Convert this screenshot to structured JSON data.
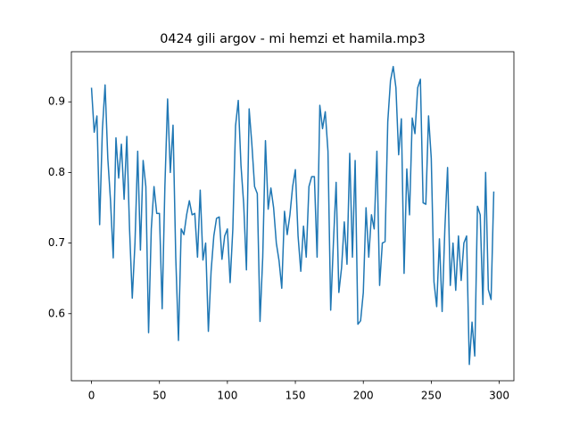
{
  "chart_data": {
    "type": "line",
    "title": "0424 gili argov - mi hemzi et hamila.mp3",
    "x": [
      0,
      2,
      4,
      6,
      8,
      10,
      12,
      14,
      16,
      18,
      20,
      22,
      24,
      26,
      28,
      30,
      32,
      34,
      36,
      38,
      40,
      42,
      44,
      46,
      48,
      50,
      52,
      54,
      56,
      58,
      60,
      62,
      64,
      66,
      68,
      70,
      72,
      74,
      76,
      78,
      80,
      82,
      84,
      86,
      88,
      90,
      92,
      94,
      96,
      98,
      100,
      102,
      104,
      106,
      108,
      110,
      112,
      114,
      116,
      118,
      120,
      122,
      124,
      126,
      128,
      130,
      132,
      134,
      136,
      138,
      140,
      142,
      144,
      146,
      148,
      150,
      152,
      154,
      156,
      158,
      160,
      162,
      164,
      166,
      168,
      170,
      172,
      174,
      176,
      178,
      180,
      182,
      184,
      186,
      188,
      190,
      192,
      194,
      196,
      198,
      200,
      202,
      204,
      206,
      208,
      210,
      212,
      214,
      216,
      218,
      220,
      222,
      224,
      226,
      228,
      230,
      232,
      234,
      236,
      238,
      240,
      242,
      244,
      246,
      248,
      250,
      252,
      254,
      256,
      258,
      260,
      262,
      264,
      266,
      268,
      270,
      272,
      274,
      276,
      278,
      280,
      282,
      284,
      286,
      288,
      290,
      292,
      294,
      296
    ],
    "series": [
      {
        "color": "#1f77b4",
        "values": [
          0.92,
          0.857,
          0.88,
          0.726,
          0.86,
          0.924,
          0.82,
          0.76,
          0.679,
          0.849,
          0.792,
          0.84,
          0.762,
          0.851,
          0.72,
          0.622,
          0.7,
          0.83,
          0.69,
          0.817,
          0.78,
          0.573,
          0.72,
          0.78,
          0.742,
          0.742,
          0.607,
          0.78,
          0.904,
          0.8,
          0.867,
          0.68,
          0.562,
          0.72,
          0.712,
          0.74,
          0.76,
          0.74,
          0.742,
          0.68,
          0.775,
          0.676,
          0.7,
          0.575,
          0.66,
          0.71,
          0.735,
          0.737,
          0.677,
          0.71,
          0.72,
          0.644,
          0.72,
          0.866,
          0.902,
          0.81,
          0.755,
          0.662,
          0.89,
          0.84,
          0.78,
          0.77,
          0.589,
          0.68,
          0.845,
          0.748,
          0.778,
          0.75,
          0.7,
          0.675,
          0.636,
          0.745,
          0.712,
          0.74,
          0.78,
          0.804,
          0.71,
          0.66,
          0.724,
          0.68,
          0.78,
          0.794,
          0.794,
          0.68,
          0.895,
          0.862,
          0.886,
          0.83,
          0.605,
          0.7,
          0.786,
          0.63,
          0.665,
          0.73,
          0.67,
          0.827,
          0.68,
          0.817,
          0.585,
          0.59,
          0.63,
          0.75,
          0.68,
          0.74,
          0.72,
          0.83,
          0.64,
          0.7,
          0.702,
          0.872,
          0.93,
          0.95,
          0.92,
          0.825,
          0.876,
          0.657,
          0.805,
          0.74,
          0.877,
          0.855,
          0.92,
          0.932,
          0.757,
          0.755,
          0.88,
          0.82,
          0.645,
          0.61,
          0.706,
          0.603,
          0.72,
          0.807,
          0.64,
          0.7,
          0.633,
          0.71,
          0.647,
          0.7,
          0.71,
          0.528,
          0.588,
          0.54,
          0.752,
          0.74,
          0.613,
          0.8,
          0.634,
          0.62,
          0.773
        ]
      }
    ],
    "xlim": [
      -14.8,
      310.8
    ],
    "xticks": [
      0,
      50,
      100,
      150,
      200,
      250,
      300
    ],
    "ylim": [
      0.505,
      0.971
    ],
    "yticks": [
      0.6,
      0.7,
      0.8,
      0.9
    ]
  }
}
